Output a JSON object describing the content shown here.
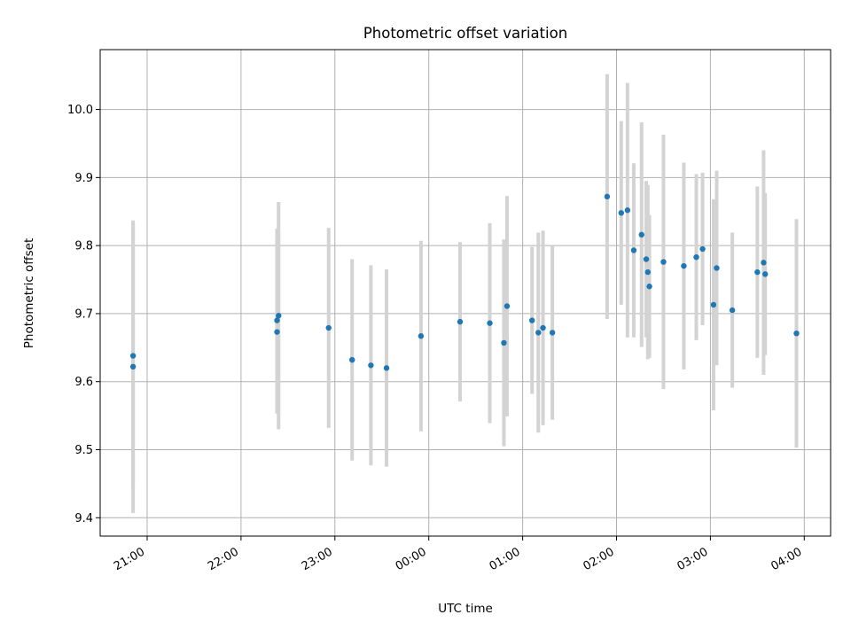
{
  "chart_data": {
    "type": "scatter",
    "title": "Photometric offset variation",
    "xlabel": "UTC time",
    "ylabel": "Photometric offset",
    "x_tick_labels": [
      "21:00",
      "22:00",
      "23:00",
      "00:00",
      "01:00",
      "02:00",
      "03:00",
      "04:00"
    ],
    "y_tick_labels": [
      "9.4",
      "9.5",
      "9.6",
      "9.7",
      "9.8",
      "9.9",
      "10.0"
    ],
    "y_ticks": [
      9.4,
      9.5,
      9.6,
      9.7,
      9.8,
      9.9,
      10.0
    ],
    "ylim": [
      9.373,
      10.088
    ],
    "grid": true,
    "colors": {
      "marker": "#1f77b4",
      "errorbar": "#d3d3d3",
      "grid": "#b0b0b0"
    },
    "points": [
      {
        "x": "20:51",
        "y": 9.638,
        "err": 0.195
      },
      {
        "x": "20:51",
        "y": 9.622,
        "err": 0.215
      },
      {
        "x": "22:23",
        "y": 9.673,
        "err": 0.12
      },
      {
        "x": "22:23",
        "y": 9.69,
        "err": 0.135
      },
      {
        "x": "22:24",
        "y": 9.697,
        "err": 0.167
      },
      {
        "x": "22:56",
        "y": 9.679,
        "err": 0.147
      },
      {
        "x": "23:11",
        "y": 9.632,
        "err": 0.148
      },
      {
        "x": "23:23",
        "y": 9.624,
        "err": 0.147
      },
      {
        "x": "23:33",
        "y": 9.62,
        "err": 0.145
      },
      {
        "x": "23:55",
        "y": 9.667,
        "err": 0.14
      },
      {
        "x": "00:20",
        "y": 9.688,
        "err": 0.117
      },
      {
        "x": "00:39",
        "y": 9.686,
        "err": 0.147
      },
      {
        "x": "00:48",
        "y": 9.657,
        "err": 0.152
      },
      {
        "x": "00:50",
        "y": 9.711,
        "err": 0.162
      },
      {
        "x": "01:06",
        "y": 9.69,
        "err": 0.108
      },
      {
        "x": "01:10",
        "y": 9.672,
        "err": 0.147
      },
      {
        "x": "01:13",
        "y": 9.679,
        "err": 0.143
      },
      {
        "x": "01:19",
        "y": 9.672,
        "err": 0.128
      },
      {
        "x": "01:54",
        "y": 9.872,
        "err": 0.18
      },
      {
        "x": "02:03",
        "y": 9.848,
        "err": 0.135
      },
      {
        "x": "02:07",
        "y": 9.852,
        "err": 0.187
      },
      {
        "x": "02:11",
        "y": 9.793,
        "err": 0.128
      },
      {
        "x": "02:16",
        "y": 9.816,
        "err": 0.165
      },
      {
        "x": "02:19",
        "y": 9.78,
        "err": 0.115
      },
      {
        "x": "02:20",
        "y": 9.761,
        "err": 0.128
      },
      {
        "x": "02:21",
        "y": 9.74,
        "err": 0.105
      },
      {
        "x": "02:30",
        "y": 9.776,
        "err": 0.187
      },
      {
        "x": "02:43",
        "y": 9.77,
        "err": 0.152
      },
      {
        "x": "02:51",
        "y": 9.783,
        "err": 0.122
      },
      {
        "x": "02:55",
        "y": 9.795,
        "err": 0.112
      },
      {
        "x": "03:02",
        "y": 9.713,
        "err": 0.155
      },
      {
        "x": "03:04",
        "y": 9.767,
        "err": 0.143
      },
      {
        "x": "03:14",
        "y": 9.705,
        "err": 0.114
      },
      {
        "x": "03:30",
        "y": 9.761,
        "err": 0.126
      },
      {
        "x": "03:34",
        "y": 9.775,
        "err": 0.165
      },
      {
        "x": "03:35",
        "y": 9.758,
        "err": 0.119
      },
      {
        "x": "03:55",
        "y": 9.671,
        "err": 0.168
      }
    ]
  }
}
